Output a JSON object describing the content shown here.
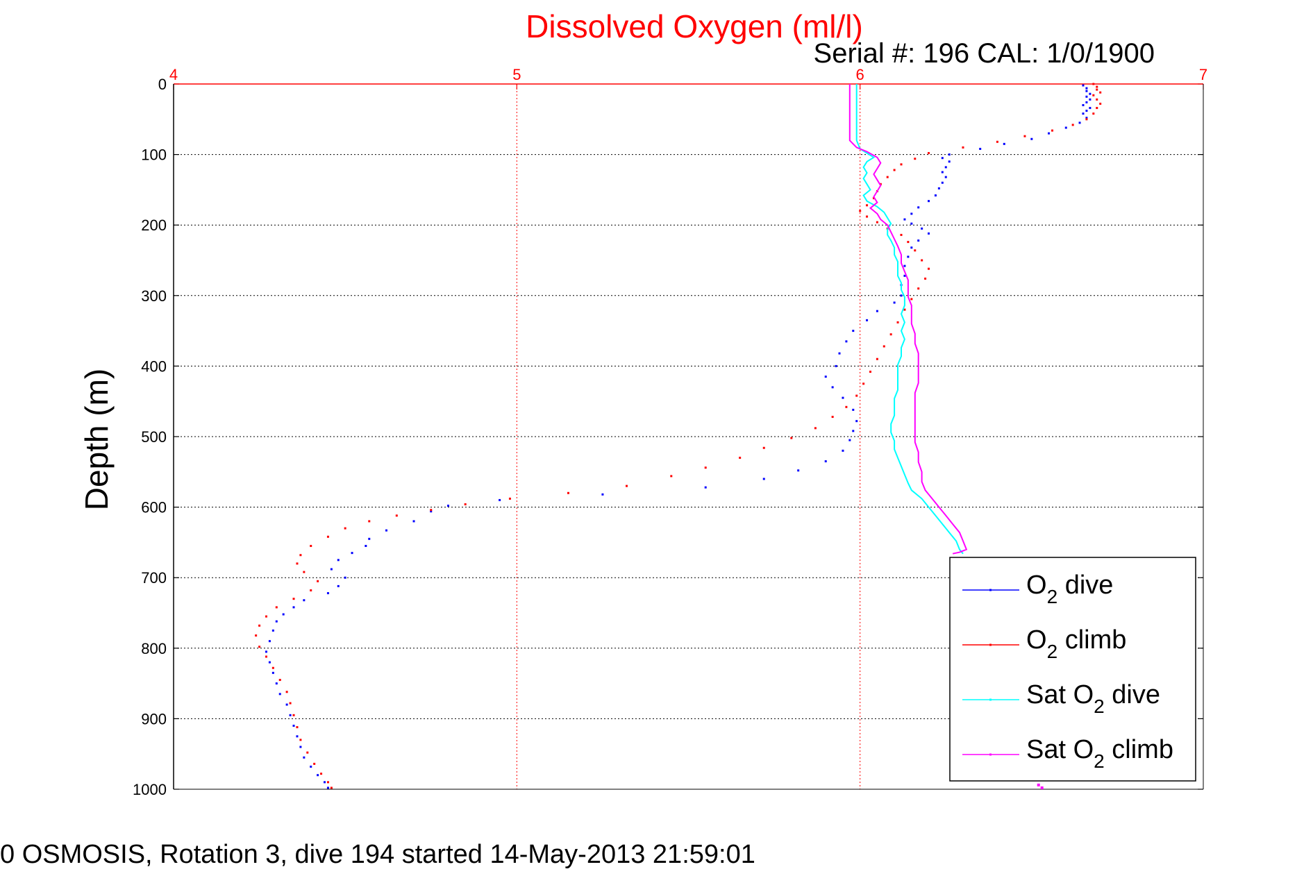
{
  "chart_data": {
    "type": "scatter",
    "title": "Dissolved Oxygen (ml/l)",
    "subtitle": "Serial #: 196  CAL: 1/0/1900",
    "xlabel": "",
    "ylabel": "Depth (m)",
    "xlim": [
      4,
      7
    ],
    "ylim": [
      0,
      1000
    ],
    "y_reversed": true,
    "x_ticks": [
      "4",
      "5",
      "6",
      "7"
    ],
    "y_ticks": [
      "0",
      "100",
      "200",
      "300",
      "400",
      "500",
      "600",
      "700",
      "800",
      "900",
      "1000"
    ],
    "grid": true,
    "legend_position": "bottom-right",
    "colors": {
      "title": "#ff0000",
      "x_axis": "#ff0000",
      "dive": "#0000ff",
      "climb": "#ff0000",
      "sat_dive": "#00ffff",
      "sat_climb": "#ff00ff"
    },
    "series": [
      {
        "name": "O2 dive",
        "legend_main": "O",
        "legend_sub": "2",
        "legend_rest": " dive",
        "style": "dots",
        "color": "#0000ff",
        "points": [
          [
            6.65,
            2
          ],
          [
            6.66,
            6
          ],
          [
            6.66,
            10
          ],
          [
            6.67,
            14
          ],
          [
            6.66,
            18
          ],
          [
            6.67,
            22
          ],
          [
            6.66,
            26
          ],
          [
            6.65,
            30
          ],
          [
            6.67,
            34
          ],
          [
            6.66,
            38
          ],
          [
            6.65,
            42
          ],
          [
            6.66,
            48
          ],
          [
            6.64,
            55
          ],
          [
            6.6,
            62
          ],
          [
            6.55,
            70
          ],
          [
            6.5,
            78
          ],
          [
            6.42,
            85
          ],
          [
            6.35,
            92
          ],
          [
            6.26,
            100
          ],
          [
            6.24,
            105
          ],
          [
            6.26,
            110
          ],
          [
            6.25,
            118
          ],
          [
            6.24,
            125
          ],
          [
            6.25,
            132
          ],
          [
            6.24,
            140
          ],
          [
            6.23,
            148
          ],
          [
            6.22,
            158
          ],
          [
            6.2,
            166
          ],
          [
            6.17,
            175
          ],
          [
            6.15,
            184
          ],
          [
            6.13,
            192
          ],
          [
            6.15,
            198
          ],
          [
            6.18,
            205
          ],
          [
            6.2,
            212
          ],
          [
            6.17,
            222
          ],
          [
            6.15,
            232
          ],
          [
            6.14,
            245
          ],
          [
            6.13,
            258
          ],
          [
            6.13,
            272
          ],
          [
            6.12,
            285
          ],
          [
            6.12,
            300
          ],
          [
            6.1,
            310
          ],
          [
            6.05,
            322
          ],
          [
            6.02,
            335
          ],
          [
            5.98,
            350
          ],
          [
            5.96,
            365
          ],
          [
            5.94,
            382
          ],
          [
            5.93,
            400
          ],
          [
            5.9,
            415
          ],
          [
            5.92,
            430
          ],
          [
            5.95,
            445
          ],
          [
            5.98,
            462
          ],
          [
            5.99,
            478
          ],
          [
            5.98,
            492
          ],
          [
            5.97,
            505
          ],
          [
            5.95,
            520
          ],
          [
            5.9,
            535
          ],
          [
            5.82,
            548
          ],
          [
            5.72,
            560
          ],
          [
            5.55,
            572
          ],
          [
            5.25,
            582
          ],
          [
            4.95,
            590
          ],
          [
            4.8,
            598
          ],
          [
            4.75,
            606
          ],
          [
            4.7,
            620
          ],
          [
            4.62,
            633
          ],
          [
            4.57,
            645
          ],
          [
            4.56,
            655
          ],
          [
            4.52,
            665
          ],
          [
            4.48,
            675
          ],
          [
            4.46,
            688
          ],
          [
            4.5,
            700
          ],
          [
            4.48,
            712
          ],
          [
            4.45,
            722
          ],
          [
            4.38,
            732
          ],
          [
            4.35,
            742
          ],
          [
            4.32,
            752
          ],
          [
            4.3,
            762
          ],
          [
            4.29,
            775
          ],
          [
            4.28,
            790
          ],
          [
            4.27,
            805
          ],
          [
            4.28,
            820
          ],
          [
            4.29,
            835
          ],
          [
            4.3,
            850
          ],
          [
            4.31,
            865
          ],
          [
            4.33,
            880
          ],
          [
            4.34,
            895
          ],
          [
            4.35,
            910
          ],
          [
            4.36,
            925
          ],
          [
            4.37,
            940
          ],
          [
            4.38,
            955
          ],
          [
            4.4,
            968
          ],
          [
            4.42,
            980
          ],
          [
            4.44,
            990
          ],
          [
            4.45,
            998
          ]
        ]
      },
      {
        "name": "O2 climb",
        "legend_main": "O",
        "legend_sub": "2",
        "legend_rest": " climb",
        "style": "dots",
        "color": "#ff0000",
        "points": [
          [
            6.68,
            0
          ],
          [
            6.69,
            4
          ],
          [
            6.69,
            8
          ],
          [
            6.7,
            12
          ],
          [
            6.68,
            16
          ],
          [
            6.69,
            22
          ],
          [
            6.7,
            28
          ],
          [
            6.69,
            34
          ],
          [
            6.68,
            42
          ],
          [
            6.66,
            50
          ],
          [
            6.62,
            58
          ],
          [
            6.56,
            66
          ],
          [
            6.48,
            74
          ],
          [
            6.4,
            82
          ],
          [
            6.3,
            90
          ],
          [
            6.2,
            98
          ],
          [
            6.16,
            106
          ],
          [
            6.12,
            114
          ],
          [
            6.1,
            122
          ],
          [
            6.08,
            132
          ],
          [
            6.06,
            142
          ],
          [
            6.05,
            152
          ],
          [
            6.04,
            162
          ],
          [
            6.02,
            172
          ],
          [
            6.0,
            180
          ],
          [
            6.02,
            188
          ],
          [
            6.05,
            196
          ],
          [
            6.08,
            205
          ],
          [
            6.12,
            214
          ],
          [
            6.14,
            224
          ],
          [
            6.16,
            236
          ],
          [
            6.18,
            250
          ],
          [
            6.2,
            262
          ],
          [
            6.19,
            276
          ],
          [
            6.17,
            290
          ],
          [
            6.15,
            305
          ],
          [
            6.13,
            320
          ],
          [
            6.11,
            338
          ],
          [
            6.09,
            355
          ],
          [
            6.07,
            372
          ],
          [
            6.05,
            390
          ],
          [
            6.03,
            408
          ],
          [
            6.01,
            425
          ],
          [
            5.99,
            442
          ],
          [
            5.96,
            458
          ],
          [
            5.92,
            472
          ],
          [
            5.87,
            488
          ],
          [
            5.8,
            502
          ],
          [
            5.72,
            516
          ],
          [
            5.65,
            530
          ],
          [
            5.55,
            544
          ],
          [
            5.45,
            556
          ],
          [
            5.32,
            570
          ],
          [
            5.15,
            580
          ],
          [
            4.98,
            588
          ],
          [
            4.85,
            596
          ],
          [
            4.75,
            604
          ],
          [
            4.65,
            612
          ],
          [
            4.57,
            620
          ],
          [
            4.5,
            630
          ],
          [
            4.45,
            642
          ],
          [
            4.4,
            655
          ],
          [
            4.37,
            668
          ],
          [
            4.36,
            680
          ],
          [
            4.38,
            692
          ],
          [
            4.42,
            705
          ],
          [
            4.4,
            718
          ],
          [
            4.35,
            730
          ],
          [
            4.3,
            742
          ],
          [
            4.27,
            755
          ],
          [
            4.25,
            768
          ],
          [
            4.24,
            782
          ],
          [
            4.25,
            798
          ],
          [
            4.27,
            812
          ],
          [
            4.29,
            828
          ],
          [
            4.31,
            845
          ],
          [
            4.33,
            862
          ],
          [
            4.34,
            878
          ],
          [
            4.35,
            895
          ],
          [
            4.36,
            912
          ],
          [
            4.37,
            930
          ],
          [
            4.39,
            948
          ],
          [
            4.41,
            964
          ],
          [
            4.43,
            978
          ],
          [
            4.45,
            990
          ],
          [
            4.46,
            998
          ]
        ]
      },
      {
        "name": "Sat O2 dive",
        "legend_main": "Sat O",
        "legend_sub": "2",
        "legend_rest": " dive",
        "style": "line",
        "color": "#00ffff",
        "points": [
          [
            5.99,
            0
          ],
          [
            5.99,
            40
          ],
          [
            5.99,
            80
          ],
          [
            6.0,
            92
          ],
          [
            6.02,
            98
          ],
          [
            6.04,
            104
          ],
          [
            6.02,
            110
          ],
          [
            6.01,
            118
          ],
          [
            6.02,
            126
          ],
          [
            6.01,
            134
          ],
          [
            6.02,
            142
          ],
          [
            6.03,
            150
          ],
          [
            6.01,
            158
          ],
          [
            6.02,
            166
          ],
          [
            6.05,
            174
          ],
          [
            6.07,
            182
          ],
          [
            6.08,
            190
          ],
          [
            6.09,
            198
          ],
          [
            6.08,
            206
          ],
          [
            6.08,
            214
          ],
          [
            6.09,
            222
          ],
          [
            6.1,
            232
          ],
          [
            6.1,
            242
          ],
          [
            6.11,
            252
          ],
          [
            6.11,
            262
          ],
          [
            6.11,
            272
          ],
          [
            6.12,
            282
          ],
          [
            6.12,
            292
          ],
          [
            6.13,
            302
          ],
          [
            6.13,
            314
          ],
          [
            6.12,
            326
          ],
          [
            6.13,
            338
          ],
          [
            6.12,
            350
          ],
          [
            6.13,
            362
          ],
          [
            6.12,
            374
          ],
          [
            6.12,
            386
          ],
          [
            6.11,
            398
          ],
          [
            6.11,
            410
          ],
          [
            6.11,
            422
          ],
          [
            6.11,
            434
          ],
          [
            6.1,
            446
          ],
          [
            6.1,
            458
          ],
          [
            6.1,
            470
          ],
          [
            6.09,
            482
          ],
          [
            6.09,
            494
          ],
          [
            6.1,
            506
          ],
          [
            6.1,
            518
          ],
          [
            6.11,
            530
          ],
          [
            6.12,
            542
          ],
          [
            6.13,
            554
          ],
          [
            6.14,
            566
          ],
          [
            6.15,
            576
          ],
          [
            6.18,
            588
          ],
          [
            6.2,
            600
          ],
          [
            6.22,
            612
          ],
          [
            6.24,
            624
          ],
          [
            6.26,
            636
          ],
          [
            6.28,
            648
          ],
          [
            6.29,
            660
          ],
          [
            6.3,
            666
          ]
        ]
      },
      {
        "name": "Sat O2 climb",
        "legend_main": "Sat O",
        "legend_sub": "2",
        "legend_rest": " climb",
        "style": "line",
        "color": "#ff00ff",
        "points": [
          [
            5.97,
            0
          ],
          [
            5.97,
            40
          ],
          [
            5.97,
            80
          ],
          [
            5.99,
            90
          ],
          [
            6.02,
            96
          ],
          [
            6.05,
            104
          ],
          [
            6.06,
            112
          ],
          [
            6.05,
            120
          ],
          [
            6.04,
            128
          ],
          [
            6.05,
            136
          ],
          [
            6.06,
            144
          ],
          [
            6.05,
            152
          ],
          [
            6.04,
            160
          ],
          [
            6.05,
            168
          ],
          [
            6.03,
            176
          ],
          [
            6.05,
            184
          ],
          [
            6.06,
            192
          ],
          [
            6.08,
            200
          ],
          [
            6.09,
            210
          ],
          [
            6.1,
            220
          ],
          [
            6.11,
            230
          ],
          [
            6.12,
            242
          ],
          [
            6.12,
            254
          ],
          [
            6.13,
            266
          ],
          [
            6.14,
            278
          ],
          [
            6.14,
            290
          ],
          [
            6.14,
            302
          ],
          [
            6.15,
            314
          ],
          [
            6.15,
            326
          ],
          [
            6.15,
            340
          ],
          [
            6.16,
            354
          ],
          [
            6.16,
            368
          ],
          [
            6.17,
            382
          ],
          [
            6.17,
            396
          ],
          [
            6.17,
            410
          ],
          [
            6.17,
            424
          ],
          [
            6.16,
            438
          ],
          [
            6.16,
            452
          ],
          [
            6.16,
            466
          ],
          [
            6.16,
            480
          ],
          [
            6.16,
            494
          ],
          [
            6.16,
            508
          ],
          [
            6.17,
            522
          ],
          [
            6.17,
            536
          ],
          [
            6.18,
            550
          ],
          [
            6.18,
            564
          ],
          [
            6.19,
            576
          ],
          [
            6.21,
            588
          ],
          [
            6.23,
            600
          ],
          [
            6.25,
            612
          ],
          [
            6.27,
            624
          ],
          [
            6.29,
            636
          ],
          [
            6.3,
            648
          ],
          [
            6.31,
            660
          ],
          [
            6.29,
            664
          ],
          [
            6.27,
            666
          ]
        ]
      }
    ],
    "extra_marks": [
      [
        6.52,
        994
      ],
      [
        6.53,
        998
      ]
    ]
  },
  "footer": "0 OSMOSIS, Rotation 3, dive 194 started 14-May-2013 21:59:01"
}
